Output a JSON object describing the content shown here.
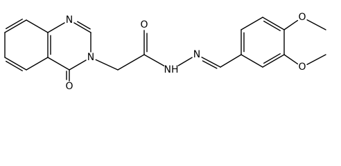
{
  "atoms": [
    {
      "label": "N"
    },
    {
      "label": "N"
    },
    {
      "label": "O"
    },
    {
      "label": "O"
    },
    {
      "label": "NH"
    },
    {
      "label": "N"
    },
    {
      "label": "O"
    },
    {
      "label": "O"
    }
  ]
}
